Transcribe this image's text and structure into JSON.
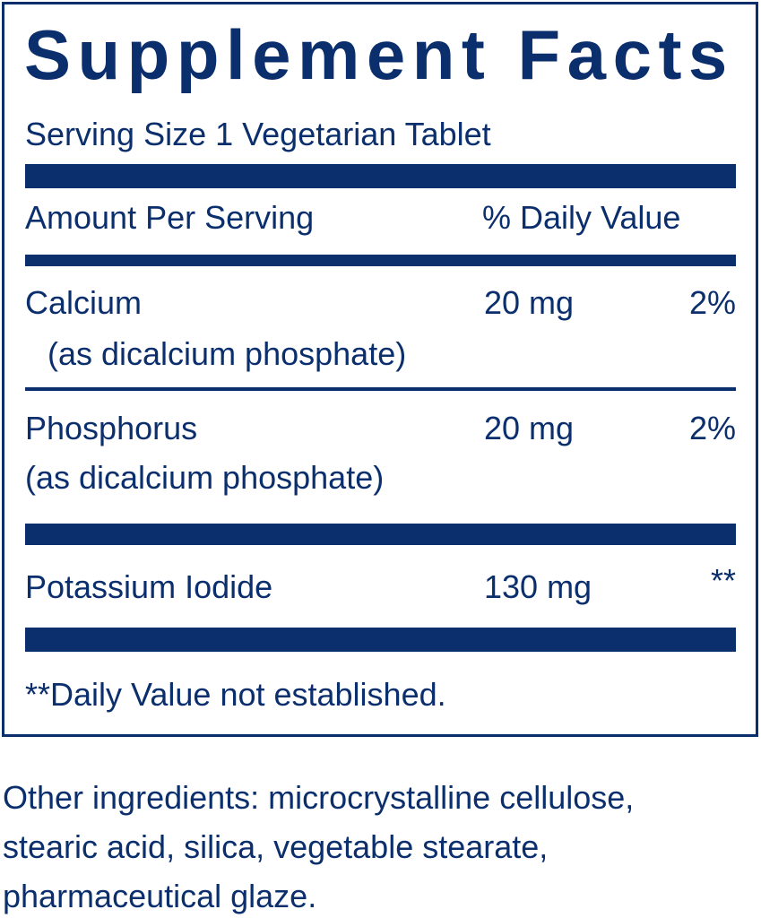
{
  "title": "Supplement Facts",
  "serving_size": "Serving Size 1 Vegetarian Tablet",
  "header": {
    "amount": "Amount Per Serving",
    "daily_value": "% Daily Value"
  },
  "rows": [
    {
      "name": "Calcium",
      "source": "(as dicalcium phosphate)",
      "amount": "20 mg",
      "dv": "2%"
    },
    {
      "name": "Phosphorus",
      "source": "(as dicalcium phosphate)",
      "amount": "20 mg",
      "dv": "2%"
    },
    {
      "name": "Potassium Iodide",
      "amount": "130 mg",
      "dv": "**"
    }
  ],
  "footnote": "**Daily Value not established.",
  "other_ingredients": [
    "Other ingredients: microcrystalline cellulose,",
    "stearic acid, silica, vegetable stearate,",
    "pharmaceutical glaze."
  ],
  "colors": {
    "ink": "#0b2f6d"
  }
}
